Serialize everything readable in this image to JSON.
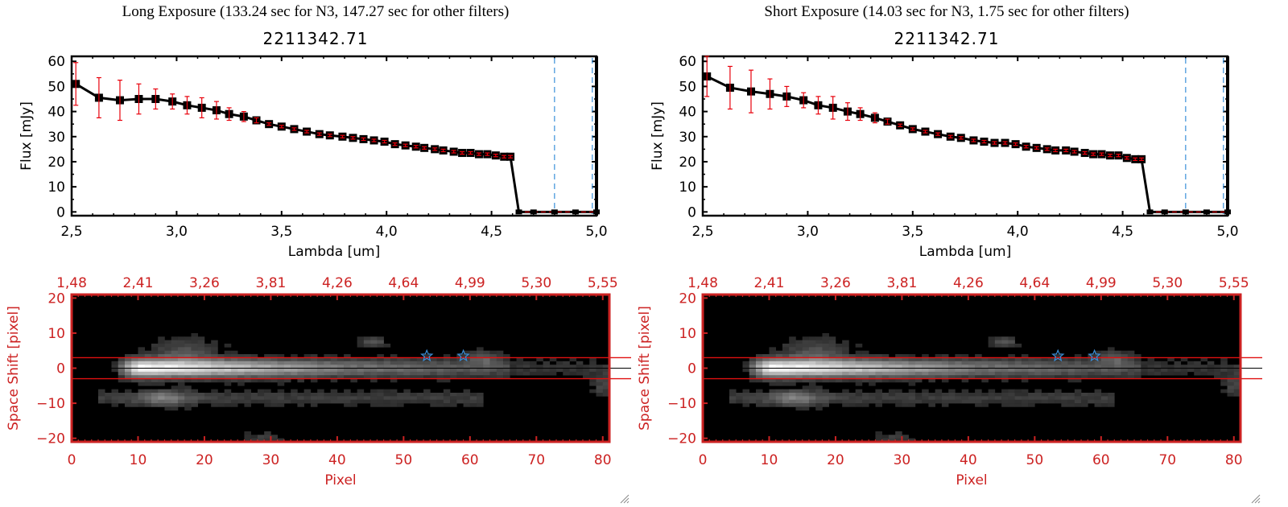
{
  "panels": [
    {
      "id": "long",
      "title": "Long Exposure (133.24 sec for N3, 147.27 sec for other filters)",
      "object_id": "2211342.71"
    },
    {
      "id": "short",
      "title": "Short Exposure (14.03 sec for N3, 1.75 sec for other filters)",
      "object_id": "2211342.71"
    }
  ],
  "colors": {
    "line": "#000000",
    "errorbar": "#e8000b",
    "marker": "#000000",
    "blue_dashed": "#3a8fd9",
    "red_axis": "#cc2222",
    "zero_dashed": "#e8000b",
    "star": "#3a8fd9"
  },
  "chart_data": [
    {
      "type": "line",
      "panel": "long",
      "title": "2211342.71",
      "xlabel": "Lambda [um]",
      "ylabel": "Flux [mJy]",
      "xlim": [
        2.5,
        5.0
      ],
      "ylim": [
        -1.5,
        62
      ],
      "xticks": [
        "2.5",
        "3.0",
        "3.5",
        "4.0",
        "4.5",
        "5.0"
      ],
      "yticks": [
        "0",
        "10",
        "20",
        "30",
        "40",
        "50",
        "60"
      ],
      "vlines_dashed": [
        4.8,
        4.98
      ],
      "hline_dashed": 0,
      "series": [
        {
          "name": "flux",
          "x": [
            2.52,
            2.63,
            2.73,
            2.82,
            2.9,
            2.98,
            3.05,
            3.12,
            3.19,
            3.25,
            3.32,
            3.38,
            3.44,
            3.5,
            3.56,
            3.62,
            3.68,
            3.73,
            3.79,
            3.84,
            3.89,
            3.94,
            3.99,
            4.04,
            4.09,
            4.14,
            4.18,
            4.23,
            4.27,
            4.32,
            4.36,
            4.4,
            4.44,
            4.48,
            4.52,
            4.56,
            4.59,
            4.63,
            4.7,
            4.8,
            4.9,
            5.0
          ],
          "y": [
            51,
            45.5,
            44.5,
            45,
            45,
            44,
            42.5,
            41.5,
            40.5,
            39,
            38,
            36.5,
            35,
            34,
            33,
            32,
            31,
            30.5,
            30,
            29.5,
            29,
            28.5,
            28,
            27,
            26.5,
            26,
            25.5,
            25,
            24.5,
            24,
            23.5,
            23.5,
            23,
            23,
            22.5,
            22,
            22,
            0,
            0,
            0,
            0,
            0
          ],
          "err": [
            8.5,
            8,
            8,
            6,
            4,
            3,
            3.5,
            4,
            3.5,
            2.5,
            2,
            1,
            0.5,
            0.5,
            0.5,
            0.5,
            0.5,
            0.5,
            0.5,
            0.5,
            0.5,
            0.5,
            0.5,
            0.5,
            0.5,
            0.5,
            0.5,
            0.5,
            0.5,
            0.5,
            0.5,
            0.5,
            0.5,
            0.5,
            0.5,
            0.5,
            0.5,
            0,
            0,
            0,
            0,
            0
          ]
        }
      ]
    },
    {
      "type": "line",
      "panel": "short",
      "title": "2211342.71",
      "xlabel": "Lambda [um]",
      "ylabel": "Flux [mJy]",
      "xlim": [
        2.5,
        5.0
      ],
      "ylim": [
        -1.5,
        62
      ],
      "xticks": [
        "2.5",
        "3.0",
        "3.5",
        "4.0",
        "4.5",
        "5.0"
      ],
      "yticks": [
        "0",
        "10",
        "20",
        "30",
        "40",
        "50",
        "60"
      ],
      "vlines_dashed": [
        4.8,
        4.98
      ],
      "hline_dashed": 0,
      "series": [
        {
          "name": "flux",
          "x": [
            2.52,
            2.63,
            2.73,
            2.82,
            2.9,
            2.98,
            3.05,
            3.12,
            3.19,
            3.25,
            3.32,
            3.38,
            3.44,
            3.5,
            3.56,
            3.62,
            3.68,
            3.73,
            3.79,
            3.84,
            3.89,
            3.94,
            3.99,
            4.04,
            4.09,
            4.14,
            4.18,
            4.23,
            4.27,
            4.32,
            4.36,
            4.4,
            4.44,
            4.48,
            4.52,
            4.56,
            4.59,
            4.63,
            4.7,
            4.8,
            4.9,
            5.0
          ],
          "y": [
            54,
            49.5,
            48,
            47,
            46,
            44.5,
            42.5,
            41.5,
            40,
            39,
            37.5,
            36,
            34.5,
            33,
            32,
            31,
            30,
            29.5,
            28.5,
            28,
            27.5,
            27.5,
            27,
            26,
            25.5,
            25,
            24.5,
            24.5,
            24,
            23.5,
            23,
            23,
            22.5,
            22.5,
            21.5,
            21,
            21,
            0,
            0,
            0,
            0,
            0
          ],
          "err": [
            8,
            8.5,
            8.5,
            6,
            4,
            3,
            3.5,
            4.5,
            3.5,
            2.5,
            2,
            1,
            0.5,
            0.5,
            0.5,
            0.5,
            0.5,
            0.5,
            0.5,
            0.5,
            0.5,
            0.5,
            0.5,
            0.5,
            0.5,
            0.5,
            0.5,
            0.5,
            0.5,
            0.5,
            0.5,
            0.5,
            0.5,
            0.5,
            0.5,
            0.5,
            0.5,
            0,
            0,
            0,
            0,
            0
          ]
        }
      ]
    },
    {
      "type": "heatmap",
      "panel": "long",
      "xlabel": "Pixel",
      "ylabel": "Space Shift [pixel]",
      "xlim": [
        0,
        81
      ],
      "ylim": [
        -21,
        21
      ],
      "xticks": [
        "0",
        "10",
        "20",
        "30",
        "40",
        "50",
        "60",
        "70",
        "80"
      ],
      "yticks": [
        "-20",
        "-10",
        "0",
        "10",
        "20"
      ],
      "top_xticks": [
        "1.48",
        "2.41",
        "3.26",
        "3.81",
        "4.26",
        "4.64",
        "4.99",
        "5.30",
        "5.55"
      ],
      "aperture_lines": [
        -3,
        3
      ],
      "center_line": 0,
      "stars": [
        {
          "x": 53.5,
          "y": 3.5
        },
        {
          "x": 59,
          "y": 3.5
        }
      ]
    },
    {
      "type": "heatmap",
      "panel": "short",
      "xlabel": "Pixel",
      "ylabel": "Space Shift [pixel]",
      "xlim": [
        0,
        81
      ],
      "ylim": [
        -21,
        21
      ],
      "xticks": [
        "0",
        "10",
        "20",
        "30",
        "40",
        "50",
        "60",
        "70",
        "80"
      ],
      "yticks": [
        "-20",
        "-10",
        "0",
        "10",
        "20"
      ],
      "top_xticks": [
        "1.48",
        "2.41",
        "3.26",
        "3.81",
        "4.26",
        "4.64",
        "4.99",
        "5.30",
        "5.55"
      ],
      "aperture_lines": [
        -3,
        3
      ],
      "center_line": 0,
      "stars": [
        {
          "x": 53.5,
          "y": 3.5
        },
        {
          "x": 59,
          "y": 3.5
        }
      ]
    }
  ]
}
